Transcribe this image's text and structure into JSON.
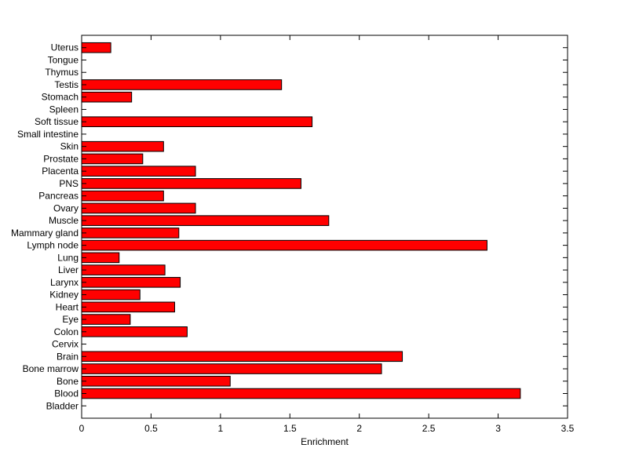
{
  "chart_data": {
    "type": "bar",
    "orientation": "horizontal",
    "title": "",
    "xlabel": "Enrichment",
    "ylabel": "",
    "xlim": [
      0,
      3.5
    ],
    "x_ticks": [
      0,
      0.5,
      1,
      1.5,
      2,
      2.5,
      3,
      3.5
    ],
    "x_tick_labels": [
      "0",
      "0.5",
      "1",
      "1.5",
      "2",
      "2.5",
      "3",
      "3.5"
    ],
    "grid": false,
    "legend": "none",
    "bar_color": "#ff0000",
    "bar_edge_color": "#000000",
    "categories": [
      "Bladder",
      "Blood",
      "Bone",
      "Bone marrow",
      "Brain",
      "Cervix",
      "Colon",
      "Eye",
      "Heart",
      "Kidney",
      "Larynx",
      "Liver",
      "Lung",
      "Lymph node",
      "Mammary gland",
      "Muscle",
      "Ovary",
      "Pancreas",
      "PNS",
      "Placenta",
      "Prostate",
      "Skin",
      "Small intestine",
      "Soft tissue",
      "Spleen",
      "Stomach",
      "Testis",
      "Thymus",
      "Tongue",
      "Uterus"
    ],
    "values": [
      0,
      3.16,
      1.07,
      2.16,
      2.31,
      0,
      0.76,
      0.35,
      0.67,
      0.42,
      0.71,
      0.6,
      0.27,
      2.92,
      0.7,
      1.78,
      0.82,
      0.59,
      1.58,
      0.82,
      0.44,
      0.59,
      0,
      1.66,
      0,
      0.36,
      1.44,
      0,
      0,
      0.21
    ]
  }
}
